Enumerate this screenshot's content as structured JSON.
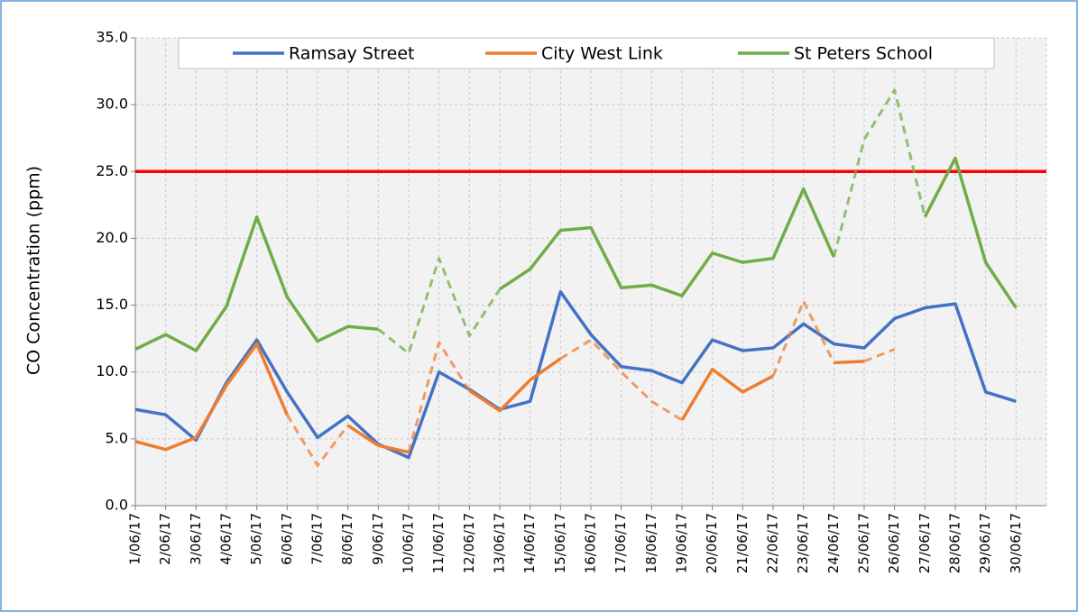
{
  "chart_data": {
    "type": "line",
    "y_label": "CO Concentration (ppm)",
    "categories": [
      "1/06/17",
      "2/06/17",
      "3/06/17",
      "4/06/17",
      "5/06/17",
      "6/06/17",
      "7/06/17",
      "8/06/17",
      "9/06/17",
      "10/06/17",
      "11/06/17",
      "12/06/17",
      "13/06/17",
      "14/06/17",
      "15/06/17",
      "16/06/17",
      "17/06/17",
      "18/06/17",
      "19/06/17",
      "20/06/17",
      "21/06/17",
      "22/06/17",
      "23/06/17",
      "24/06/17",
      "25/06/17",
      "26/06/17",
      "27/06/17",
      "28/06/17",
      "29/06/17",
      "30/06/17"
    ],
    "series": [
      {
        "name": "Ramsay Street",
        "color": "#4472c4",
        "values": [
          7.2,
          6.8,
          4.9,
          9.2,
          12.4,
          8.5,
          5.1,
          6.7,
          4.6,
          3.6,
          10.0,
          8.7,
          7.2,
          7.8,
          16.0,
          12.8,
          10.4,
          10.1,
          9.2,
          12.4,
          11.6,
          11.8,
          13.6,
          12.1,
          11.8,
          14.0,
          14.8,
          15.1,
          8.5,
          7.8
        ],
        "dashed_segments": []
      },
      {
        "name": "City West Link",
        "color": "#ed7d31",
        "values": [
          4.8,
          4.2,
          5.1,
          9.0,
          12.1,
          6.8,
          3.0,
          6.0,
          4.5,
          4.0,
          12.2,
          8.6,
          7.1,
          9.4,
          11.0,
          12.4,
          10.0,
          7.8,
          6.4,
          10.2,
          8.5,
          9.7,
          15.3,
          10.7,
          10.8,
          11.7,
          null,
          null,
          null,
          null
        ],
        "dashed_segments": [
          5,
          6,
          9,
          10,
          14,
          15,
          16,
          17,
          21,
          22,
          24
        ]
      },
      {
        "name": "St Peters School",
        "color": "#70ad47",
        "values": [
          11.7,
          12.8,
          11.6,
          14.9,
          21.6,
          15.6,
          12.3,
          13.4,
          13.2,
          11.4,
          18.5,
          12.7,
          16.2,
          17.7,
          20.6,
          20.8,
          16.3,
          16.5,
          15.7,
          18.9,
          18.2,
          18.5,
          23.7,
          18.6,
          27.4,
          31.1,
          21.6,
          26.0,
          18.2,
          14.8
        ],
        "dashed_segments": [
          8,
          9,
          10,
          11,
          23,
          24,
          25
        ]
      }
    ],
    "reference_line": {
      "value": 25,
      "color": "#ff0000"
    },
    "ylim": [
      0,
      35
    ],
    "yticks": [
      {
        "value": 0,
        "label": "0.0"
      },
      {
        "value": 5,
        "label": "5.0"
      },
      {
        "value": 10,
        "label": "10.0"
      },
      {
        "value": 15,
        "label": "15.0"
      },
      {
        "value": 20,
        "label": "20.0"
      },
      {
        "value": 25,
        "label": "25.0"
      },
      {
        "value": 30,
        "label": "30.0"
      },
      {
        "value": 35,
        "label": "35.0"
      }
    ],
    "grid": true,
    "legend": "top"
  }
}
